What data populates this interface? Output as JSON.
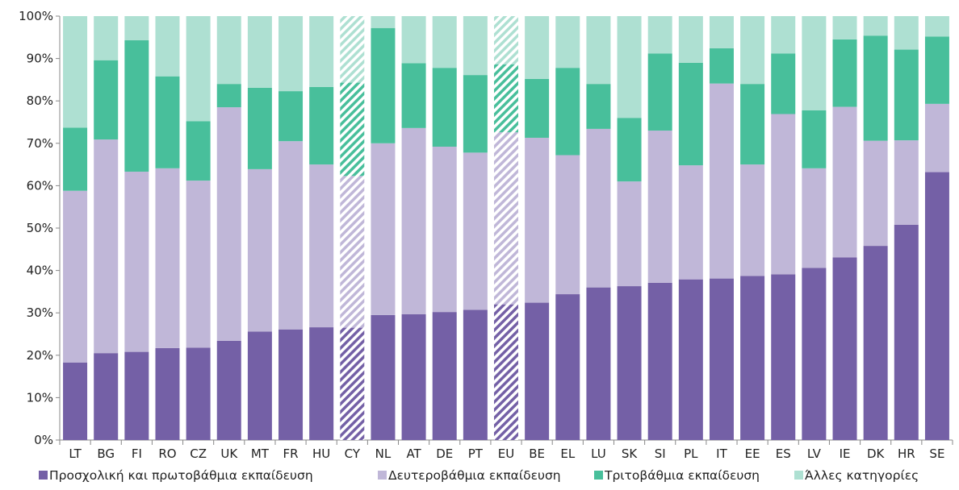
{
  "chart_data": {
    "type": "bar",
    "stacked": true,
    "percent": true,
    "categories": [
      "LT",
      "BG",
      "FI",
      "RO",
      "CZ",
      "UK",
      "MT",
      "FR",
      "HU",
      "CY",
      "NL",
      "AT",
      "DE",
      "PT",
      "EU",
      "BE",
      "EL",
      "LU",
      "SK",
      "SI",
      "PL",
      "IT",
      "EE",
      "ES",
      "LV",
      "IE",
      "DK",
      "HR",
      "SE"
    ],
    "hatched_categories": [
      "CY",
      "EU"
    ],
    "series": [
      {
        "name": "Προσχολική και πρωτοβάθμια εκπαίδευση",
        "color": "#7460a6",
        "values": [
          18.3,
          20.5,
          20.8,
          21.7,
          21.8,
          23.4,
          25.6,
          26.1,
          26.6,
          26.5,
          29.5,
          29.7,
          30.2,
          30.7,
          32.0,
          32.4,
          34.4,
          36.0,
          36.3,
          37.1,
          37.9,
          38.1,
          38.7,
          39.1,
          40.6,
          43.1,
          45.8,
          50.8,
          63.2
        ]
      },
      {
        "name": "Δευτεροβάθμια εκπαίδευση",
        "color": "#c0b7d8",
        "values": [
          40.5,
          50.4,
          42.5,
          42.4,
          39.4,
          55.1,
          38.3,
          44.4,
          38.4,
          35.8,
          40.5,
          43.9,
          39.0,
          37.1,
          40.6,
          38.9,
          32.8,
          37.4,
          24.7,
          35.9,
          26.9,
          46.0,
          26.3,
          37.8,
          23.5,
          35.5,
          24.8,
          19.9,
          16.1
        ]
      },
      {
        "name": "Τριτοβάθμια εκπαίδευση",
        "color": "#48bf9b",
        "values": [
          14.9,
          18.7,
          31.0,
          21.7,
          14.0,
          5.5,
          19.2,
          11.8,
          18.3,
          22.0,
          27.2,
          15.3,
          18.6,
          18.3,
          16.0,
          13.9,
          20.6,
          10.6,
          15.0,
          18.2,
          24.2,
          8.3,
          19.0,
          14.3,
          13.7,
          15.9,
          24.8,
          21.4,
          15.9
        ]
      },
      {
        "name": "Άλλες κατηγορίες",
        "color": "#aee0d2",
        "values": [
          26.3,
          10.4,
          5.7,
          14.2,
          24.8,
          16.0,
          16.9,
          17.7,
          16.7,
          15.7,
          2.8,
          11.1,
          12.2,
          13.9,
          11.4,
          14.8,
          12.2,
          16.0,
          24.0,
          8.8,
          11.0,
          7.6,
          16.0,
          8.8,
          22.2,
          5.5,
          4.6,
          7.9,
          4.8
        ]
      }
    ],
    "ylim": [
      0,
      100
    ],
    "yticks": [
      "0%",
      "10%",
      "20%",
      "30%",
      "40%",
      "50%",
      "60%",
      "70%",
      "80%",
      "90%",
      "100%"
    ],
    "xlabel": "",
    "ylabel": "",
    "legend_position": "bottom",
    "grid": false
  }
}
